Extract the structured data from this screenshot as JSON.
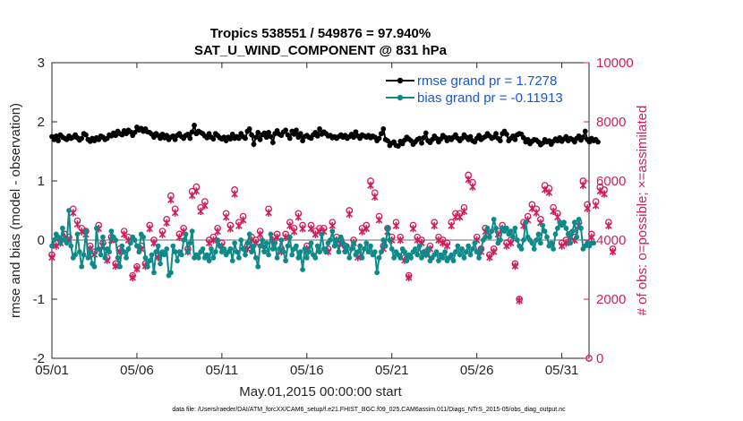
{
  "chart_data": {
    "type": "line",
    "title_line1": "Tropics 538551 / 549876 = 97.940%",
    "title_line2": "SAT_U_WIND_COMPONENT @ 831 hPa",
    "xlabel": "May.01,2015 00:00:00 start",
    "ylabel_left": "rmse and bias (model - observation)",
    "ylabel_right": "# of obs: o=possible; ×=assimilated",
    "xlim": [
      0,
      31.6
    ],
    "ylim_left": [
      -2,
      3
    ],
    "ylim_right": [
      0,
      10000
    ],
    "x_ticks": [
      {
        "pos": 0,
        "label": "05/01"
      },
      {
        "pos": 5,
        "label": "05/06"
      },
      {
        "pos": 10,
        "label": "05/11"
      },
      {
        "pos": 15,
        "label": "05/16"
      },
      {
        "pos": 20,
        "label": "05/21"
      },
      {
        "pos": 25,
        "label": "05/26"
      },
      {
        "pos": 30,
        "label": "05/31"
      }
    ],
    "y_left_ticks": [
      -2,
      -1,
      0,
      1,
      2,
      3
    ],
    "y_right_ticks": [
      0,
      2000,
      4000,
      6000,
      8000,
      10000
    ],
    "legend": {
      "location": "top-right",
      "rmse_label": "rmse grand pr = 1.7278",
      "bias_label": "bias grand pr = -0.11913"
    },
    "colors": {
      "rmse": "#000000",
      "bias": "#0f8a8a",
      "obs": "#d01e5c",
      "zero_line": "#b4b4b4",
      "legend_text": "#1a55d8"
    },
    "series_rmse": {
      "name": "rmse grand pr = 1.7278",
      "start_day": 0,
      "step_days": 0.125,
      "values": [
        1.75,
        1.7,
        1.76,
        1.68,
        1.78,
        1.74,
        1.72,
        1.7,
        1.76,
        1.72,
        1.74,
        1.78,
        1.73,
        1.69,
        1.72,
        1.8,
        1.78,
        1.7,
        1.67,
        1.72,
        1.68,
        1.73,
        1.7,
        1.76,
        1.74,
        1.7,
        1.72,
        1.78,
        1.76,
        1.81,
        1.77,
        1.84,
        1.8,
        1.78,
        1.85,
        1.8,
        1.86,
        1.83,
        1.77,
        1.82,
        1.91,
        1.86,
        1.89,
        1.84,
        1.88,
        1.83,
        1.82,
        1.79,
        1.74,
        1.8,
        1.77,
        1.72,
        1.79,
        1.73,
        1.77,
        1.7,
        1.74,
        1.76,
        1.7,
        1.77,
        1.8,
        1.75,
        1.72,
        1.77,
        1.79,
        1.72,
        1.83,
        1.94,
        1.8,
        1.84,
        1.82,
        1.8,
        1.76,
        1.73,
        1.8,
        1.74,
        1.71,
        1.8,
        1.77,
        1.73,
        1.71,
        1.74,
        1.68,
        1.74,
        1.71,
        1.79,
        1.72,
        1.75,
        1.72,
        1.8,
        1.75,
        1.72,
        1.84,
        1.88,
        1.78,
        1.62,
        1.74,
        1.82,
        1.7,
        1.78,
        1.81,
        1.74,
        1.82,
        1.75,
        1.65,
        1.8,
        1.85,
        1.79,
        1.77,
        1.83,
        1.86,
        1.78,
        1.72,
        1.84,
        1.79,
        1.86,
        1.74,
        1.8,
        1.68,
        1.75,
        1.77,
        1.74,
        1.72,
        1.78,
        1.82,
        1.76,
        1.88,
        1.79,
        1.83,
        1.8,
        1.76,
        1.77,
        1.73,
        1.75,
        1.72,
        1.75,
        1.78,
        1.74,
        1.77,
        1.72,
        1.75,
        1.79,
        1.74,
        1.83,
        1.76,
        1.72,
        1.78,
        1.76,
        1.74,
        1.77,
        1.73,
        1.76,
        1.74,
        1.68,
        1.72,
        1.8,
        1.88,
        1.7,
        1.68,
        1.6,
        1.64,
        1.66,
        1.6,
        1.59,
        1.67,
        1.63,
        1.69,
        1.74,
        1.71,
        1.68,
        1.62,
        1.66,
        1.7,
        1.72,
        1.64,
        1.73,
        1.81,
        1.68,
        1.65,
        1.7,
        1.76,
        1.72,
        1.66,
        1.71,
        1.77,
        1.74,
        1.68,
        1.73,
        1.7,
        1.74,
        1.78,
        1.72,
        1.68,
        1.72,
        1.78,
        1.74,
        1.7,
        1.75,
        1.68,
        1.66,
        1.72,
        1.77,
        1.7,
        1.73,
        1.75,
        1.8,
        1.76,
        1.72,
        1.74,
        1.8,
        1.72,
        1.68,
        1.8,
        1.84,
        1.79,
        1.68,
        1.72,
        1.76,
        1.7,
        1.78,
        1.8,
        1.79,
        1.73,
        1.66,
        1.7,
        1.63,
        1.67,
        1.7,
        1.69,
        1.66,
        1.61,
        1.64,
        1.7,
        1.66,
        1.68,
        1.62,
        1.67,
        1.71,
        1.68,
        1.73,
        1.67,
        1.71,
        1.75,
        1.68,
        1.72,
        1.7,
        1.66,
        1.72,
        1.76,
        1.69,
        1.74,
        1.84,
        1.7,
        1.66,
        1.72,
        1.68,
        1.7,
        1.66
      ]
    },
    "series_bias": {
      "name": "bias grand pr = -0.11913",
      "start_day": 0,
      "step_days": 0.125,
      "values": [
        -0.1,
        0.0,
        0.1,
        0.05,
        -0.05,
        0.2,
        0.0,
        -0.05,
        0.5,
        -0.1,
        -0.3,
        -0.25,
        0.1,
        -0.2,
        -0.45,
        -0.25,
        0.15,
        -0.3,
        -0.2,
        -0.4,
        -0.45,
        0.2,
        -0.15,
        -0.25,
        0.05,
        -0.3,
        -0.15,
        -0.2,
        0.15,
        0.05,
        0.0,
        -0.3,
        -0.45,
        -0.1,
        -0.2,
        -0.3,
        -0.15,
        -0.05,
        0.05,
        0.0,
        -0.1,
        -0.2,
        0.1,
        0.05,
        -0.3,
        -0.45,
        -0.35,
        -0.25,
        -0.55,
        -0.2,
        -0.1,
        -0.4,
        -0.2,
        -0.25,
        -0.15,
        -0.6,
        -0.55,
        -0.1,
        -0.2,
        -0.35,
        -0.2,
        -0.25,
        0.0,
        0.1,
        -0.2,
        -0.05,
        0.15,
        -0.3,
        -0.25,
        -0.3,
        -0.2,
        -0.15,
        -0.3,
        -0.25,
        -0.35,
        -0.15,
        -0.3,
        -0.2,
        0.0,
        -0.1,
        -0.2,
        -0.15,
        -0.25,
        -0.2,
        -0.15,
        -0.35,
        -0.05,
        -0.2,
        -0.3,
        0.0,
        -0.15,
        -0.25,
        -0.05,
        0.1,
        -0.2,
        -0.1,
        -0.3,
        -0.45,
        -0.1,
        0.0,
        -0.2,
        -0.05,
        -0.25,
        0.1,
        -0.15,
        -0.05,
        -0.3,
        -0.15,
        0.0,
        -0.2,
        -0.35,
        -0.1,
        0.05,
        -0.25,
        -0.15,
        -0.1,
        -0.3,
        -0.2,
        -0.5,
        -0.15,
        -0.3,
        -0.2,
        -0.05,
        -0.25,
        -0.3,
        -0.1,
        -0.2,
        0.1,
        -0.15,
        -0.2,
        -0.05,
        0.0,
        0.15,
        -0.1,
        0.0,
        -0.2,
        0.05,
        -0.05,
        -0.2,
        -0.1,
        -0.3,
        -0.15,
        -0.05,
        -0.25,
        -0.2,
        -0.1,
        -0.3,
        -0.15,
        -0.05,
        -0.2,
        -0.1,
        -0.25,
        -0.2,
        -0.55,
        -0.3,
        -0.2,
        0.0,
        -0.1,
        0.2,
        0.0,
        -0.15,
        -0.3,
        -0.2,
        -0.25,
        -0.3,
        -0.15,
        -0.2,
        -0.35,
        -0.25,
        -0.3,
        -0.2,
        -0.15,
        -0.25,
        -0.1,
        -0.3,
        -0.2,
        -0.25,
        -0.15,
        -0.35,
        -0.3,
        -0.25,
        -0.2,
        -0.35,
        -0.25,
        -0.3,
        -0.2,
        -0.35,
        -0.3,
        -0.25,
        -0.35,
        -0.2,
        -0.1,
        -0.25,
        -0.15,
        -0.3,
        -0.2,
        -0.1,
        -0.25,
        -0.15,
        -0.05,
        -0.2,
        -0.3,
        -0.15,
        0.0,
        0.05,
        0.2,
        0.05,
        0.15,
        0.35,
        0.2,
        -0.05,
        0.0,
        0.2,
        0.15,
        0.2,
        0.1,
        0.15,
        0.05,
        0.2,
        0.0,
        -0.1,
        -0.15,
        0.0,
        0.3,
        0.05,
        0.0,
        -0.05,
        -0.15,
        0.0,
        0.1,
        -0.05,
        0.25,
        0.15,
        0.05,
        -0.1,
        -0.05,
        -0.15,
        0.1,
        0.2,
        0.3,
        0.25,
        0.3,
        0.2,
        0.1,
        -0.05,
        0.15,
        0.3,
        0.05,
        0.35,
        0.2,
        -0.15,
        -0.1,
        -0.05,
        -0.1,
        -0.05,
        -0.05
      ]
    },
    "obs_count": {
      "series": "obs_possible_and_assimilated",
      "start_day": 0,
      "step_days": 0.25,
      "note": "o marks possible, x marks assimilated; nearly coincident",
      "values": [
        3500,
        3900,
        4000,
        4200,
        4100,
        5050,
        4650,
        4400,
        4300,
        3800,
        3600,
        4500,
        3900,
        3400,
        4100,
        3200,
        3700,
        4300,
        4100,
        2800,
        3100,
        3800,
        3200,
        4500,
        4000,
        3500,
        4300,
        4700,
        5500,
        5050,
        4200,
        4400,
        3700,
        5650,
        5800,
        5100,
        5300,
        4000,
        4100,
        4400,
        3900,
        4900,
        4500,
        5700,
        4600,
        4800,
        3800,
        4100,
        4000,
        4300,
        3800,
        5050,
        4100,
        4200,
        3700,
        4200,
        4600,
        4400,
        4900,
        4500,
        3800,
        4500,
        4300,
        4400,
        4400,
        3700,
        4600,
        4100,
        4000,
        3800,
        5000,
        4000,
        3500,
        4400,
        4500,
        6000,
        5600,
        4800,
        3800,
        4400,
        4100,
        4600,
        4100,
        3400,
        2800,
        4500,
        4100,
        4000,
        3600,
        3800,
        4600,
        4100,
        4000,
        3900,
        4600,
        4900,
        4900,
        5100,
        6200,
        5950,
        4100,
        3700,
        4400,
        3500,
        3700,
        4300,
        4500,
        3900,
        4000,
        3200,
        2000,
        4600,
        4800,
        5200,
        5050,
        4700,
        5850,
        5750,
        5100,
        4900,
        3900,
        4000,
        4200,
        4100,
        4600,
        6000,
        5200,
        4200,
        5300,
        5800,
        5700,
        4600,
        3700
      ]
    },
    "footer": "data file: /Users/raeder/DAI/ATM_forcXX/CAM6_setup/f.e21.FHIST_BGC.f09_025.CAM6assim.011/Diags_NTrS_2015-05/obs_diag_output.nc"
  }
}
